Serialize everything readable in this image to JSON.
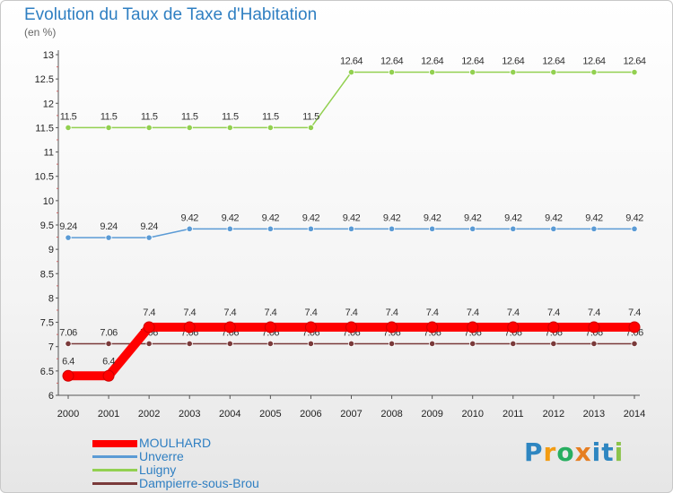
{
  "chart_data": {
    "type": "line",
    "title": "Evolution du Taux de Taxe d'Habitation",
    "ylabel": "(en %)",
    "xlabel": "",
    "ylim": [
      6,
      13
    ],
    "yticks": [
      "6",
      "6.5",
      "7",
      "7.5",
      "8",
      "8.5",
      "9",
      "9.5",
      "10",
      "10.5",
      "11",
      "11.5",
      "12",
      "12.5",
      "13"
    ],
    "categories": [
      "2000",
      "2001",
      "2002",
      "2003",
      "2004",
      "2005",
      "2006",
      "2007",
      "2008",
      "2009",
      "2010",
      "2011",
      "2012",
      "2013",
      "2014"
    ],
    "series": [
      {
        "name": "Dampierre-sous-Brou",
        "color": "#7a3a3a",
        "values": [
          7.06,
          7.06,
          7.06,
          7.06,
          7.06,
          7.06,
          7.06,
          7.06,
          7.06,
          7.06,
          7.06,
          7.06,
          7.06,
          7.06,
          7.06
        ],
        "labels": [
          "7.06",
          "7.06",
          "7.06",
          "7.06",
          "7.06",
          "7.06",
          "7.06",
          "7.06",
          "7.06",
          "7.06",
          "7.06",
          "7.06",
          "7.06",
          "7.06",
          "7.06"
        ]
      },
      {
        "name": "Unverre",
        "color": "#5b9bd5",
        "values": [
          9.24,
          9.24,
          9.24,
          9.42,
          9.42,
          9.42,
          9.42,
          9.42,
          9.42,
          9.42,
          9.42,
          9.42,
          9.42,
          9.42,
          9.42
        ],
        "labels": [
          "9.24",
          "9.24",
          "9.24",
          "9.42",
          "9.42",
          "9.42",
          "9.42",
          "9.42",
          "9.42",
          "9.42",
          "9.42",
          "9.42",
          "9.42",
          "9.42",
          "9.42"
        ]
      },
      {
        "name": "Luigny",
        "color": "#92d050",
        "values": [
          11.5,
          11.5,
          11.5,
          11.5,
          11.5,
          11.5,
          11.5,
          12.64,
          12.64,
          12.64,
          12.64,
          12.64,
          12.64,
          12.64,
          12.64
        ],
        "labels": [
          "11.5",
          "11.5",
          "11.5",
          "11.5",
          "11.5",
          "11.5",
          "11.5",
          "12.64",
          "12.64",
          "12.64",
          "12.64",
          "12.64",
          "12.64",
          "12.64",
          "12.64"
        ]
      },
      {
        "name": "MOULHARD",
        "color": "#ff0000",
        "highlight": true,
        "values": [
          6.4,
          6.4,
          7.4,
          7.4,
          7.4,
          7.4,
          7.4,
          7.4,
          7.4,
          7.4,
          7.4,
          7.4,
          7.4,
          7.4,
          7.4
        ],
        "labels": [
          "6.4",
          "6.4",
          "7.4",
          "7.4",
          "7.4",
          "7.4",
          "7.4",
          "7.4",
          "7.4",
          "7.4",
          "7.4",
          "7.4",
          "7.4",
          "7.4",
          "7.4"
        ]
      }
    ],
    "legend": [
      "MOULHARD",
      "Unverre",
      "Luigny",
      "Dampierre-sous-Brou"
    ],
    "legend_position": "bottom-left"
  },
  "colors": {
    "title": "#2f7fc2",
    "axis": "#444444"
  },
  "logo": {
    "text": "Proxiti",
    "letters": [
      "P",
      "r",
      "o",
      "x",
      "i",
      "t",
      "i"
    ],
    "letter_colors": [
      "#2e86c1",
      "#f39c12",
      "#27ae60",
      "#e67e22",
      "#2e86c1",
      "#2e86c1",
      "#8bc34a"
    ]
  }
}
